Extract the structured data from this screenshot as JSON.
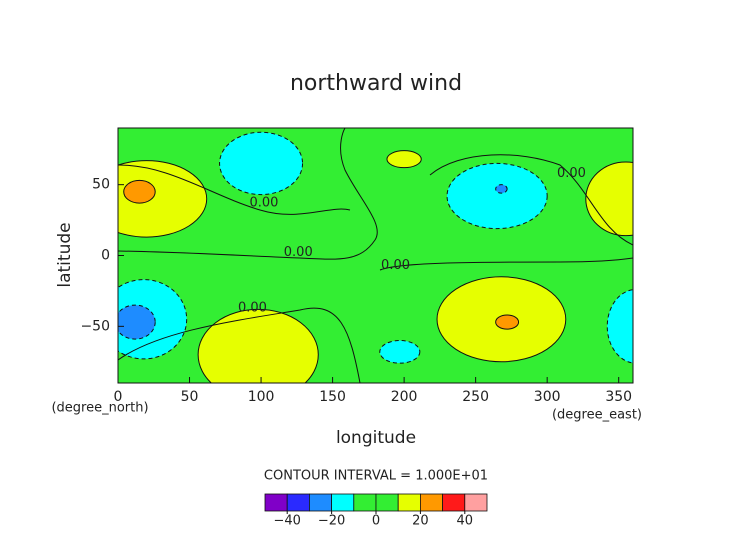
{
  "chart_data": {
    "type": "contour",
    "title": "northward wind",
    "xlabel": "longitude",
    "ylabel": "latitude",
    "xunit": "(degree_east)",
    "yunit": "(degree_north)",
    "xlim": [
      0,
      360
    ],
    "ylim": [
      -90,
      90
    ],
    "xticks": [
      0,
      50,
      100,
      150,
      200,
      250,
      300,
      350
    ],
    "yticks": [
      {
        "value": -50,
        "label": "−50"
      },
      0,
      50
    ],
    "background_value": 0,
    "regions": [
      {
        "lon": 20,
        "lat": 40,
        "dlon": 42,
        "dlat": 27,
        "value": 15
      },
      {
        "lon": 355,
        "lat": 40,
        "dlon": 28,
        "dlat": 26,
        "value": 15
      },
      {
        "lon": 15,
        "lat": 45,
        "dlon": 11,
        "dlat": 8,
        "value": 25
      },
      {
        "lon": 100,
        "lat": 65,
        "dlon": 29,
        "dlat": 22,
        "value": -15
      },
      {
        "lon": 200,
        "lat": 68,
        "dlon": 12,
        "dlat": 6,
        "value": 15
      },
      {
        "lon": 265,
        "lat": 42,
        "dlon": 35,
        "dlat": 23,
        "value": -15
      },
      {
        "lon": 268,
        "lat": 47,
        "dlon": 4,
        "dlat": 3,
        "value": -25
      },
      {
        "lon": 18,
        "lat": -45,
        "dlon": 30,
        "dlat": 28,
        "value": -15
      },
      {
        "lon": 12,
        "lat": -47,
        "dlon": 14,
        "dlat": 12,
        "value": -25
      },
      {
        "lon": 98,
        "lat": -70,
        "dlon": 42,
        "dlat": 32,
        "value": 15
      },
      {
        "lon": 268,
        "lat": -45,
        "dlon": 45,
        "dlat": 30,
        "value": 15
      },
      {
        "lon": 272,
        "lat": -47,
        "dlon": 8,
        "dlat": 5,
        "value": 25
      },
      {
        "lon": 197,
        "lat": -68,
        "dlon": 14,
        "dlat": 8,
        "value": -15
      },
      {
        "lon": 362,
        "lat": -50,
        "dlon": 20,
        "dlat": 26,
        "value": -15
      }
    ],
    "contour_labels": [
      {
        "text": "0.00",
        "lon": 102,
        "lat": 37
      },
      {
        "text": "0.00",
        "lon": 126,
        "lat": 2
      },
      {
        "text": "0.00",
        "lon": 194,
        "lat": -7
      },
      {
        "text": "0.00",
        "lon": 94,
        "lat": -37
      },
      {
        "text": "0.00",
        "lon": 317,
        "lat": 58
      }
    ],
    "colorbar": {
      "title": "CONTOUR INTERVAL = 1.000E+01",
      "levels": [
        -50,
        -40,
        -30,
        -20,
        -10,
        0,
        10,
        20,
        30,
        40,
        50
      ],
      "colors": [
        "#8000c8",
        "#2a2aff",
        "#1e8cff",
        "#00ffff",
        "#33ee33",
        "#33ee33",
        "#e6ff00",
        "#ff9900",
        "#ff1a1a",
        "#ffa0a0"
      ],
      "ticks": [
        {
          "value": -40,
          "label": "−40"
        },
        {
          "value": -20,
          "label": "−20"
        },
        0,
        20,
        40
      ]
    }
  }
}
